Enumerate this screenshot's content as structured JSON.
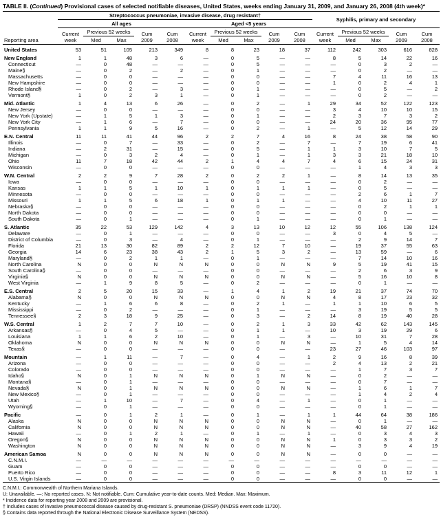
{
  "title_prefix": "TABLE II. (",
  "title_italic": "Continued",
  "title_suffix": ") Provisional cases of selected notifiable diseases, United States, weeks ending January 31, 2009, and January 26, 2008 (4th week)*",
  "header": {
    "section1": "Streptococcus pneumoniae, invasive disease, drug resistant†",
    "section1a": "All ages",
    "section1b": "Aged <5 years",
    "section2": "Syphilis, primary and secondary",
    "reporting_area": "Reporting area",
    "current_week": "Current week",
    "previous_52": "Previous 52 weeks",
    "med": "Med",
    "max": "Max",
    "cum_2009": "Cum 2009",
    "cum_2008": "Cum 2008"
  },
  "rows": [
    {
      "type": "region",
      "name": "United States",
      "c": [
        "53",
        "51",
        "105",
        "213",
        "349",
        "8",
        "8",
        "23",
        "18",
        "37",
        "112",
        "242",
        "303",
        "616",
        "828"
      ]
    },
    {
      "type": "region",
      "name": "New England",
      "c": [
        "1",
        "1",
        "48",
        "3",
        "6",
        "—",
        "0",
        "5",
        "—",
        "—",
        "8",
        "5",
        "14",
        "22",
        "16"
      ]
    },
    {
      "type": "sub",
      "name": "Connecticut",
      "c": [
        "—",
        "0",
        "48",
        "—",
        "—",
        "—",
        "0",
        "5",
        "—",
        "—",
        "—",
        "0",
        "3",
        "2",
        "—"
      ]
    },
    {
      "type": "sub",
      "name": "Maine§",
      "c": [
        "—",
        "0",
        "2",
        "—",
        "2",
        "—",
        "0",
        "1",
        "—",
        "—",
        "—",
        "0",
        "2",
        "—",
        "—"
      ]
    },
    {
      "type": "sub",
      "name": "Massachusetts",
      "c": [
        "—",
        "0",
        "0",
        "—",
        "—",
        "—",
        "0",
        "0",
        "—",
        "—",
        "7",
        "4",
        "11",
        "16",
        "13"
      ]
    },
    {
      "type": "sub",
      "name": "New Hampshire",
      "c": [
        "—",
        "0",
        "0",
        "—",
        "—",
        "—",
        "0",
        "0",
        "—",
        "—",
        "1",
        "0",
        "2",
        "4",
        "1"
      ]
    },
    {
      "type": "sub",
      "name": "Rhode Island§",
      "c": [
        "—",
        "0",
        "2",
        "—",
        "3",
        "—",
        "0",
        "1",
        "—",
        "—",
        "—",
        "0",
        "5",
        "—",
        "2"
      ]
    },
    {
      "type": "sub",
      "name": "Vermont§",
      "c": [
        "1",
        "0",
        "2",
        "3",
        "1",
        "—",
        "0",
        "1",
        "—",
        "—",
        "—",
        "0",
        "2",
        "—",
        "—"
      ]
    },
    {
      "type": "region",
      "name": "Mid. Atlantic",
      "c": [
        "1",
        "4",
        "13",
        "6",
        "26",
        "—",
        "0",
        "2",
        "—",
        "1",
        "29",
        "34",
        "52",
        "122",
        "123"
      ]
    },
    {
      "type": "sub",
      "name": "New Jersey",
      "c": [
        "—",
        "0",
        "0",
        "—",
        "—",
        "—",
        "0",
        "0",
        "—",
        "—",
        "3",
        "4",
        "10",
        "10",
        "15"
      ]
    },
    {
      "type": "sub",
      "name": "New York (Upstate)",
      "c": [
        "—",
        "1",
        "5",
        "1",
        "3",
        "—",
        "0",
        "1",
        "—",
        "—",
        "2",
        "3",
        "7",
        "3",
        "2"
      ]
    },
    {
      "type": "sub",
      "name": "New York City",
      "c": [
        "—",
        "1",
        "6",
        "—",
        "7",
        "—",
        "0",
        "0",
        "—",
        "—",
        "24",
        "20",
        "36",
        "95",
        "77"
      ]
    },
    {
      "type": "sub",
      "name": "Pennsylvania",
      "c": [
        "1",
        "1",
        "9",
        "5",
        "16",
        "—",
        "0",
        "2",
        "—",
        "1",
        "—",
        "5",
        "12",
        "14",
        "29"
      ]
    },
    {
      "type": "region",
      "name": "E.N. Central",
      "c": [
        "11",
        "11",
        "41",
        "44",
        "96",
        "2",
        "2",
        "7",
        "4",
        "16",
        "8",
        "24",
        "38",
        "58",
        "90"
      ]
    },
    {
      "type": "sub",
      "name": "Illinois",
      "c": [
        "—",
        "0",
        "7",
        "—",
        "33",
        "—",
        "0",
        "2",
        "—",
        "7",
        "—",
        "7",
        "19",
        "6",
        "41"
      ]
    },
    {
      "type": "sub",
      "name": "Indiana",
      "c": [
        "—",
        "2",
        "31",
        "—",
        "15",
        "—",
        "0",
        "5",
        "—",
        "1",
        "1",
        "3",
        "10",
        "7",
        "5"
      ]
    },
    {
      "type": "sub",
      "name": "Michigan",
      "c": [
        "—",
        "0",
        "3",
        "2",
        "4",
        "—",
        "0",
        "1",
        "—",
        "1",
        "3",
        "3",
        "21",
        "18",
        "10"
      ]
    },
    {
      "type": "sub",
      "name": "Ohio",
      "c": [
        "11",
        "7",
        "18",
        "42",
        "44",
        "2",
        "1",
        "4",
        "4",
        "7",
        "4",
        "6",
        "15",
        "24",
        "31"
      ]
    },
    {
      "type": "sub",
      "name": "Wisconsin",
      "c": [
        "—",
        "0",
        "0",
        "—",
        "—",
        "—",
        "0",
        "0",
        "—",
        "—",
        "—",
        "1",
        "4",
        "3",
        "3"
      ]
    },
    {
      "type": "region",
      "name": "W.N. Central",
      "c": [
        "2",
        "2",
        "9",
        "7",
        "28",
        "2",
        "0",
        "2",
        "2",
        "1",
        "—",
        "8",
        "14",
        "13",
        "35"
      ]
    },
    {
      "type": "sub",
      "name": "Iowa",
      "c": [
        "—",
        "0",
        "0",
        "—",
        "—",
        "—",
        "0",
        "0",
        "—",
        "—",
        "—",
        "0",
        "2",
        "—",
        "—"
      ]
    },
    {
      "type": "sub",
      "name": "Kansas",
      "c": [
        "1",
        "1",
        "5",
        "1",
        "10",
        "1",
        "0",
        "1",
        "1",
        "1",
        "—",
        "0",
        "5",
        "—",
        "—"
      ]
    },
    {
      "type": "sub",
      "name": "Minnesota",
      "c": [
        "—",
        "0",
        "0",
        "—",
        "—",
        "—",
        "0",
        "0",
        "—",
        "—",
        "—",
        "2",
        "6",
        "1",
        "7"
      ]
    },
    {
      "type": "sub",
      "name": "Missouri",
      "c": [
        "1",
        "1",
        "5",
        "6",
        "18",
        "1",
        "0",
        "1",
        "1",
        "—",
        "—",
        "4",
        "10",
        "11",
        "27"
      ]
    },
    {
      "type": "sub",
      "name": "Nebraska§",
      "c": [
        "—",
        "0",
        "0",
        "—",
        "—",
        "—",
        "0",
        "0",
        "—",
        "—",
        "—",
        "0",
        "2",
        "1",
        "1"
      ]
    },
    {
      "type": "sub",
      "name": "North Dakota",
      "c": [
        "—",
        "0",
        "0",
        "—",
        "—",
        "—",
        "0",
        "0",
        "—",
        "—",
        "—",
        "0",
        "0",
        "—",
        "—"
      ]
    },
    {
      "type": "sub",
      "name": "South Dakota",
      "c": [
        "—",
        "0",
        "1",
        "—",
        "—",
        "—",
        "0",
        "1",
        "—",
        "—",
        "—",
        "0",
        "1",
        "—",
        "—"
      ]
    },
    {
      "type": "region",
      "name": "S. Atlantic",
      "c": [
        "35",
        "22",
        "53",
        "129",
        "142",
        "4",
        "3",
        "13",
        "10",
        "12",
        "12",
        "55",
        "106",
        "138",
        "124"
      ]
    },
    {
      "type": "sub",
      "name": "Delaware",
      "c": [
        "—",
        "0",
        "1",
        "—",
        "—",
        "—",
        "0",
        "0",
        "—",
        "—",
        "3",
        "0",
        "4",
        "5",
        "—"
      ]
    },
    {
      "type": "sub",
      "name": "District of Columbia",
      "c": [
        "—",
        "0",
        "3",
        "—",
        "4",
        "—",
        "0",
        "1",
        "—",
        "—",
        "—",
        "2",
        "9",
        "14",
        "7"
      ]
    },
    {
      "type": "sub",
      "name": "Florida",
      "c": [
        "21",
        "13",
        "30",
        "82",
        "89",
        "2",
        "2",
        "12",
        "7",
        "10",
        "—",
        "19",
        "37",
        "55",
        "63"
      ]
    },
    {
      "type": "sub",
      "name": "Georgia",
      "c": [
        "14",
        "6",
        "23",
        "38",
        "43",
        "2",
        "1",
        "5",
        "3",
        "2",
        "—",
        "13",
        "59",
        "—",
        "6"
      ]
    },
    {
      "type": "sub",
      "name": "Maryland§",
      "c": [
        "—",
        "0",
        "2",
        "1",
        "1",
        "—",
        "0",
        "1",
        "—",
        "—",
        "—",
        "7",
        "14",
        "10",
        "16"
      ]
    },
    {
      "type": "sub",
      "name": "North Carolina",
      "c": [
        "N",
        "0",
        "0",
        "N",
        "N",
        "N",
        "0",
        "0",
        "N",
        "N",
        "9",
        "5",
        "19",
        "41",
        "15"
      ]
    },
    {
      "type": "sub",
      "name": "South Carolina§",
      "c": [
        "—",
        "0",
        "0",
        "—",
        "—",
        "—",
        "0",
        "0",
        "—",
        "—",
        "—",
        "2",
        "6",
        "3",
        "9"
      ]
    },
    {
      "type": "sub",
      "name": "Virginia§",
      "c": [
        "N",
        "0",
        "0",
        "N",
        "N",
        "N",
        "0",
        "0",
        "N",
        "N",
        "—",
        "5",
        "16",
        "10",
        "8"
      ]
    },
    {
      "type": "sub",
      "name": "West Virginia",
      "c": [
        "—",
        "1",
        "9",
        "8",
        "5",
        "—",
        "0",
        "2",
        "—",
        "—",
        "—",
        "0",
        "1",
        "—",
        "—"
      ]
    },
    {
      "type": "region",
      "name": "E.S. Central",
      "c": [
        "2",
        "5",
        "20",
        "15",
        "33",
        "—",
        "1",
        "4",
        "1",
        "2",
        "19",
        "21",
        "37",
        "74",
        "70"
      ]
    },
    {
      "type": "sub",
      "name": "Alabama§",
      "c": [
        "N",
        "0",
        "0",
        "N",
        "N",
        "N",
        "0",
        "0",
        "N",
        "N",
        "4",
        "8",
        "17",
        "23",
        "32"
      ]
    },
    {
      "type": "sub",
      "name": "Kentucky",
      "c": [
        "—",
        "1",
        "6",
        "6",
        "8",
        "—",
        "0",
        "2",
        "1",
        "—",
        "1",
        "1",
        "10",
        "6",
        "5"
      ]
    },
    {
      "type": "sub",
      "name": "Mississippi",
      "c": [
        "—",
        "0",
        "2",
        "—",
        "—",
        "—",
        "0",
        "1",
        "—",
        "—",
        "—",
        "3",
        "19",
        "5",
        "5"
      ]
    },
    {
      "type": "sub",
      "name": "Tennessee§",
      "c": [
        "2",
        "3",
        "18",
        "9",
        "25",
        "—",
        "0",
        "3",
        "—",
        "2",
        "14",
        "8",
        "19",
        "40",
        "28"
      ]
    },
    {
      "type": "region",
      "name": "W.S. Central",
      "c": [
        "1",
        "2",
        "7",
        "7",
        "10",
        "—",
        "0",
        "2",
        "1",
        "3",
        "33",
        "42",
        "62",
        "143",
        "145"
      ]
    },
    {
      "type": "sub",
      "name": "Arkansas§",
      "c": [
        "—",
        "0",
        "4",
        "5",
        "—",
        "—",
        "0",
        "1",
        "1",
        "—",
        "10",
        "3",
        "19",
        "29",
        "6"
      ]
    },
    {
      "type": "sub",
      "name": "Louisiana",
      "c": [
        "1",
        "1",
        "6",
        "2",
        "10",
        "—",
        "0",
        "1",
        "—",
        "3",
        "—",
        "10",
        "31",
        "7",
        "28"
      ]
    },
    {
      "type": "sub",
      "name": "Oklahoma",
      "c": [
        "N",
        "0",
        "0",
        "N",
        "N",
        "N",
        "0",
        "0",
        "N",
        "N",
        "—",
        "1",
        "5",
        "4",
        "14"
      ]
    },
    {
      "type": "sub",
      "name": "Texas§",
      "c": [
        "—",
        "0",
        "0",
        "—",
        "—",
        "—",
        "0",
        "0",
        "—",
        "—",
        "23",
        "27",
        "46",
        "103",
        "97"
      ]
    },
    {
      "type": "region",
      "name": "Mountain",
      "c": [
        "—",
        "1",
        "11",
        "—",
        "7",
        "—",
        "0",
        "4",
        "—",
        "1",
        "2",
        "9",
        "16",
        "8",
        "39"
      ]
    },
    {
      "type": "sub",
      "name": "Arizona",
      "c": [
        "—",
        "0",
        "0",
        "—",
        "—",
        "—",
        "0",
        "0",
        "—",
        "—",
        "2",
        "4",
        "13",
        "2",
        "21"
      ]
    },
    {
      "type": "sub",
      "name": "Colorado",
      "c": [
        "—",
        "0",
        "0",
        "—",
        "—",
        "—",
        "0",
        "0",
        "—",
        "—",
        "—",
        "1",
        "7",
        "3",
        "7"
      ]
    },
    {
      "type": "sub",
      "name": "Idaho§",
      "c": [
        "N",
        "0",
        "1",
        "N",
        "N",
        "N",
        "0",
        "1",
        "N",
        "N",
        "—",
        "0",
        "2",
        "—",
        "—"
      ]
    },
    {
      "type": "sub",
      "name": "Montana§",
      "c": [
        "—",
        "0",
        "1",
        "—",
        "—",
        "—",
        "0",
        "0",
        "—",
        "—",
        "—",
        "0",
        "7",
        "—",
        "—"
      ]
    },
    {
      "type": "sub",
      "name": "Nevada§",
      "c": [
        "N",
        "0",
        "1",
        "N",
        "N",
        "N",
        "0",
        "0",
        "N",
        "N",
        "—",
        "1",
        "6",
        "1",
        "7"
      ]
    },
    {
      "type": "sub",
      "name": "New Mexico§",
      "c": [
        "—",
        "0",
        "1",
        "—",
        "—",
        "—",
        "0",
        "0",
        "—",
        "—",
        "—",
        "1",
        "4",
        "2",
        "4"
      ]
    },
    {
      "type": "sub",
      "name": "Utah",
      "c": [
        "—",
        "1",
        "10",
        "—",
        "7",
        "—",
        "0",
        "4",
        "—",
        "1",
        "—",
        "0",
        "1",
        "—",
        "—"
      ]
    },
    {
      "type": "sub",
      "name": "Wyoming§",
      "c": [
        "—",
        "0",
        "1",
        "—",
        "—",
        "—",
        "0",
        "0",
        "—",
        "—",
        "—",
        "0",
        "1",
        "—",
        "—"
      ]
    },
    {
      "type": "region",
      "name": "Pacific",
      "c": [
        "—",
        "0",
        "1",
        "2",
        "1",
        "—",
        "0",
        "1",
        "—",
        "1",
        "1",
        "44",
        "64",
        "38",
        "186"
      ]
    },
    {
      "type": "sub",
      "name": "Alaska",
      "c": [
        "N",
        "0",
        "0",
        "N",
        "N",
        "N",
        "0",
        "0",
        "N",
        "N",
        "—",
        "0",
        "1",
        "—",
        "—"
      ]
    },
    {
      "type": "sub",
      "name": "California",
      "c": [
        "N",
        "0",
        "0",
        "N",
        "N",
        "N",
        "0",
        "0",
        "N",
        "N",
        "—",
        "40",
        "58",
        "27",
        "162"
      ]
    },
    {
      "type": "sub",
      "name": "Hawaii",
      "c": [
        "—",
        "0",
        "1",
        "2",
        "1",
        "—",
        "0",
        "1",
        "—",
        "1",
        "—",
        "0",
        "3",
        "4",
        "3"
      ]
    },
    {
      "type": "sub",
      "name": "Oregon§",
      "c": [
        "N",
        "0",
        "0",
        "N",
        "N",
        "N",
        "0",
        "0",
        "N",
        "N",
        "1",
        "0",
        "3",
        "3",
        "2"
      ]
    },
    {
      "type": "sub",
      "name": "Washington",
      "c": [
        "N",
        "0",
        "0",
        "N",
        "N",
        "N",
        "0",
        "0",
        "N",
        "N",
        "—",
        "3",
        "9",
        "4",
        "19"
      ]
    },
    {
      "type": "region",
      "name": "American Samoa",
      "c": [
        "N",
        "0",
        "0",
        "N",
        "N",
        "N",
        "0",
        "0",
        "N",
        "N",
        "—",
        "0",
        "0",
        "—",
        "—"
      ]
    },
    {
      "type": "sub",
      "name": "C.N.M.I.",
      "c": [
        "—",
        "—",
        "—",
        "—",
        "—",
        "—",
        "—",
        "—",
        "—",
        "—",
        "—",
        "—",
        "—",
        "—",
        "—"
      ]
    },
    {
      "type": "sub",
      "name": "Guam",
      "c": [
        "—",
        "0",
        "0",
        "—",
        "—",
        "—",
        "0",
        "0",
        "—",
        "—",
        "—",
        "0",
        "0",
        "—",
        "—"
      ]
    },
    {
      "type": "sub",
      "name": "Puerto Rico",
      "c": [
        "—",
        "0",
        "0",
        "—",
        "—",
        "—",
        "0",
        "0",
        "—",
        "—",
        "8",
        "3",
        "11",
        "12",
        "1"
      ]
    },
    {
      "type": "sub",
      "name": "U.S. Virgin Islands",
      "c": [
        "—",
        "0",
        "0",
        "—",
        "—",
        "—",
        "0",
        "0",
        "—",
        "—",
        "—",
        "0",
        "0",
        "—",
        "—"
      ]
    }
  ],
  "footnotes": [
    "C.N.M.I.: Commonwealth of Northern Mariana Islands.",
    "U: Unavailable.   —: No reported cases.   N: Not notifiable.   Cum: Cumulative year-to-date counts.   Med: Median.   Max: Maximum.",
    "* Incidence data for reporting year 2008 and 2009 are provisional.",
    "† Includes cases of invasive pneumococcal disease caused by drug-resistant S. pneumoniae (DRSP) (NNDSS event code 11720).",
    "§ Contains data reported through the National Electronic Disease Surveillance System (NEDSS)."
  ]
}
